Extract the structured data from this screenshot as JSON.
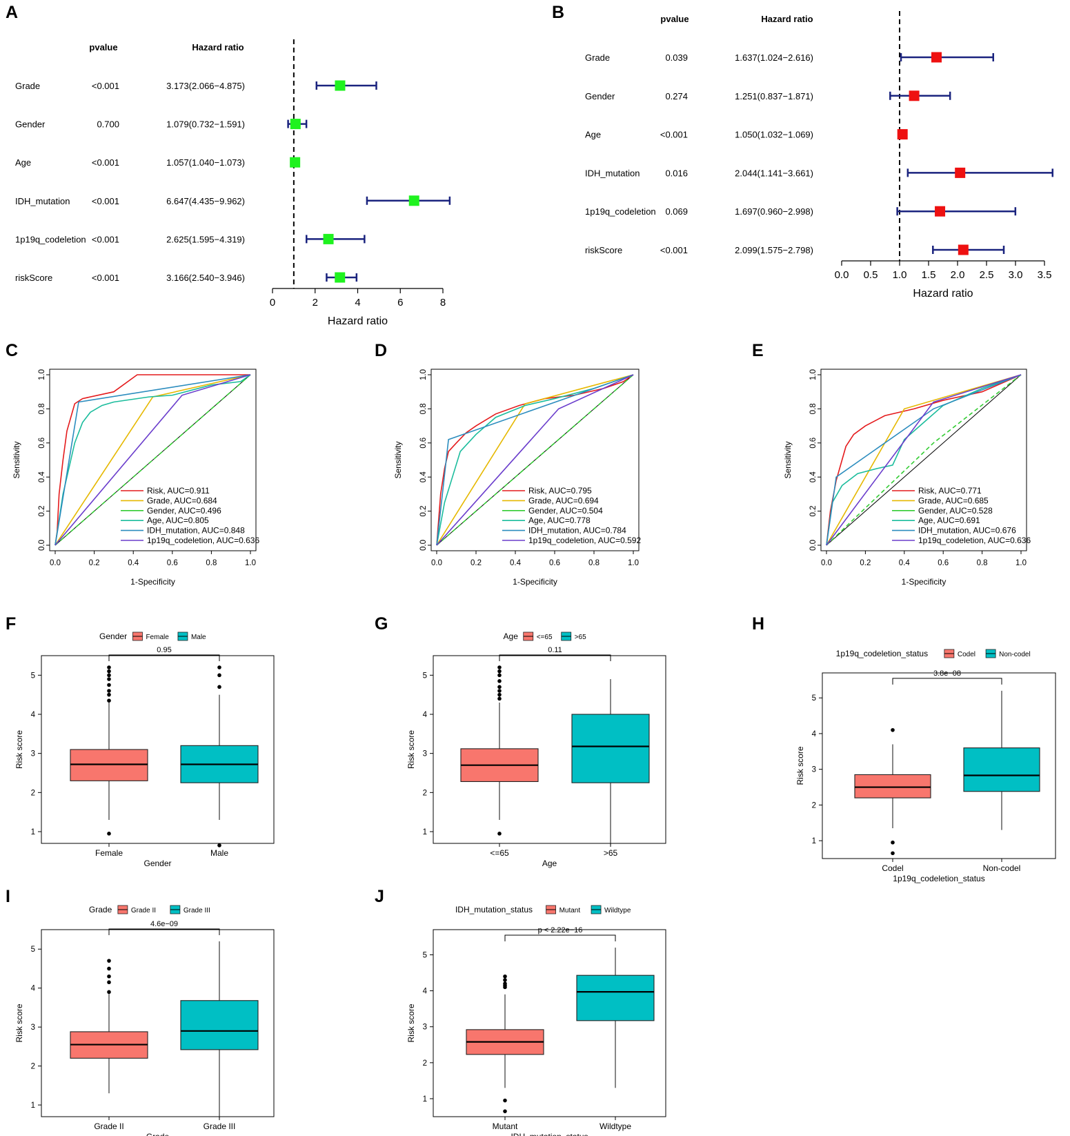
{
  "figure": {
    "panel_labels": [
      "A",
      "B",
      "C",
      "D",
      "E",
      "F",
      "G",
      "H",
      "I",
      "J"
    ]
  },
  "chart_data": [
    {
      "panel": "A",
      "type": "forest",
      "header_pvalue": "pvalue",
      "header_hr": "Hazard ratio",
      "xlabel": "Hazard ratio",
      "xlim": [
        0,
        8
      ],
      "ticks": [
        0,
        2,
        4,
        6,
        8
      ],
      "tick_labels": [
        "0",
        "2",
        "4",
        "6",
        "8"
      ],
      "reference_line": 1,
      "marker_color": "#1ff21f",
      "ci_color": "#1a237e",
      "rows": [
        {
          "label": "Grade",
          "pvalue": "<0.001",
          "hr_text": "3.173(2.066−4.875)",
          "hr": 3.173,
          "lo": 2.066,
          "hi": 4.875
        },
        {
          "label": "Gender",
          "pvalue": "0.700",
          "hr_text": "1.079(0.732−1.591)",
          "hr": 1.079,
          "lo": 0.732,
          "hi": 1.591
        },
        {
          "label": "Age",
          "pvalue": "<0.001",
          "hr_text": "1.057(1.040−1.073)",
          "hr": 1.057,
          "lo": 1.04,
          "hi": 1.073
        },
        {
          "label": "IDH_mutation",
          "pvalue": "<0.001",
          "hr_text": "6.647(4.435−9.962)",
          "hr": 6.647,
          "lo": 4.435,
          "hi": 9.962
        },
        {
          "label": "1p19q_codeletion",
          "pvalue": "<0.001",
          "hr_text": "2.625(1.595−4.319)",
          "hr": 2.625,
          "lo": 1.595,
          "hi": 4.319
        },
        {
          "label": "riskScore",
          "pvalue": "<0.001",
          "hr_text": "3.166(2.540−3.946)",
          "hr": 3.166,
          "lo": 2.54,
          "hi": 3.946
        }
      ]
    },
    {
      "panel": "B",
      "type": "forest",
      "header_pvalue": "pvalue",
      "header_hr": "Hazard ratio",
      "xlabel": "Hazard ratio",
      "xlim": [
        0,
        3.5
      ],
      "ticks": [
        0,
        0.5,
        1,
        1.5,
        2,
        2.5,
        3,
        3.5
      ],
      "tick_labels": [
        "0.0",
        "0.5",
        "1.0",
        "1.5",
        "2.0",
        "2.5",
        "3.0",
        "3.5"
      ],
      "reference_line": 1,
      "marker_color": "#ee1111",
      "ci_color": "#1a237e",
      "rows": [
        {
          "label": "Grade",
          "pvalue": "0.039",
          "hr_text": "1.637(1.024−2.616)",
          "hr": 1.637,
          "lo": 1.024,
          "hi": 2.616
        },
        {
          "label": "Gender",
          "pvalue": "0.274",
          "hr_text": "1.251(0.837−1.871)",
          "hr": 1.251,
          "lo": 0.837,
          "hi": 1.871
        },
        {
          "label": "Age",
          "pvalue": "<0.001",
          "hr_text": "1.050(1.032−1.069)",
          "hr": 1.05,
          "lo": 1.032,
          "hi": 1.069
        },
        {
          "label": "IDH_mutation",
          "pvalue": "0.016",
          "hr_text": "2.044(1.141−3.661)",
          "hr": 2.044,
          "lo": 1.141,
          "hi": 3.661
        },
        {
          "label": "1p19q_codeletion",
          "pvalue": "0.069",
          "hr_text": "1.697(0.960−2.998)",
          "hr": 1.697,
          "lo": 0.96,
          "hi": 2.998
        },
        {
          "label": "riskScore",
          "pvalue": "<0.001",
          "hr_text": "2.099(1.575−2.798)",
          "hr": 2.099,
          "lo": 1.575,
          "hi": 2.798
        }
      ]
    },
    {
      "panel": "C",
      "type": "roc",
      "xlabel": "1-Specificity",
      "ylabel": "Sensitivity",
      "xlim": [
        0,
        1
      ],
      "ylim": [
        0,
        1
      ],
      "ticks": [
        "0.0",
        "0.2",
        "0.4",
        "0.6",
        "0.8",
        "1.0"
      ],
      "series": [
        {
          "name": "Risk, AUC=0.911",
          "color": "#e41a1c",
          "points": [
            [
              0,
              0
            ],
            [
              0.01,
              0.08
            ],
            [
              0.02,
              0.3
            ],
            [
              0.04,
              0.5
            ],
            [
              0.06,
              0.67
            ],
            [
              0.08,
              0.75
            ],
            [
              0.1,
              0.83
            ],
            [
              0.14,
              0.86
            ],
            [
              0.3,
              0.9
            ],
            [
              0.42,
              1
            ],
            [
              1,
              1
            ]
          ]
        },
        {
          "name": "Grade, AUC=0.684",
          "color": "#e6b800",
          "points": [
            [
              0,
              0
            ],
            [
              0.5,
              0.87
            ],
            [
              1,
              1
            ]
          ]
        },
        {
          "name": "Gender, AUC=0.496",
          "color": "#33cc33",
          "points": [
            [
              0,
              0
            ],
            [
              0.5,
              0.5
            ],
            [
              1,
              1
            ]
          ]
        },
        {
          "name": "Age, AUC=0.805",
          "color": "#1abc9c",
          "points": [
            [
              0,
              0
            ],
            [
              0.04,
              0.3
            ],
            [
              0.06,
              0.4
            ],
            [
              0.1,
              0.6
            ],
            [
              0.14,
              0.72
            ],
            [
              0.18,
              0.78
            ],
            [
              0.24,
              0.82
            ],
            [
              0.3,
              0.84
            ],
            [
              0.48,
              0.87
            ],
            [
              0.6,
              0.88
            ],
            [
              0.8,
              0.94
            ],
            [
              0.95,
              0.96
            ],
            [
              1,
              1
            ]
          ]
        },
        {
          "name": "IDH_mutation, AUC=0.848",
          "color": "#2b8cbe",
          "points": [
            [
              0,
              0
            ],
            [
              0.12,
              0.84
            ],
            [
              1,
              1
            ]
          ]
        },
        {
          "name": "1p19q_codeletion, AUC=0.636",
          "color": "#6a3dcc",
          "points": [
            [
              0,
              0
            ],
            [
              0.65,
              0.88
            ],
            [
              1,
              1
            ]
          ]
        }
      ]
    },
    {
      "panel": "D",
      "type": "roc",
      "xlabel": "1-Specificity",
      "ylabel": "Sensitivity",
      "xlim": [
        0,
        1
      ],
      "ylim": [
        0,
        1
      ],
      "ticks": [
        "0.0",
        "0.2",
        "0.4",
        "0.6",
        "0.8",
        "1.0"
      ],
      "series": [
        {
          "name": "Risk, AUC=0.795",
          "color": "#e41a1c",
          "points": [
            [
              0,
              0
            ],
            [
              0.02,
              0.3
            ],
            [
              0.04,
              0.45
            ],
            [
              0.06,
              0.55
            ],
            [
              0.1,
              0.6
            ],
            [
              0.15,
              0.66
            ],
            [
              0.2,
              0.7
            ],
            [
              0.3,
              0.77
            ],
            [
              0.42,
              0.82
            ],
            [
              0.55,
              0.86
            ],
            [
              0.7,
              0.88
            ],
            [
              0.85,
              0.92
            ],
            [
              0.95,
              0.96
            ],
            [
              1,
              1
            ]
          ]
        },
        {
          "name": "Grade, AUC=0.694",
          "color": "#e6b800",
          "points": [
            [
              0,
              0
            ],
            [
              0.45,
              0.83
            ],
            [
              1,
              1
            ]
          ]
        },
        {
          "name": "Gender, AUC=0.504",
          "color": "#33cc33",
          "points": [
            [
              0,
              0
            ],
            [
              0.5,
              0.5
            ],
            [
              1,
              1
            ]
          ]
        },
        {
          "name": "Age, AUC=0.778",
          "color": "#1abc9c",
          "points": [
            [
              0,
              0
            ],
            [
              0.04,
              0.25
            ],
            [
              0.08,
              0.4
            ],
            [
              0.12,
              0.55
            ],
            [
              0.2,
              0.65
            ],
            [
              0.3,
              0.75
            ],
            [
              0.45,
              0.82
            ],
            [
              0.6,
              0.86
            ],
            [
              0.8,
              0.92
            ],
            [
              1,
              1
            ]
          ]
        },
        {
          "name": "IDH_mutation, AUC=0.784",
          "color": "#2b8cbe",
          "points": [
            [
              0,
              0
            ],
            [
              0.06,
              0.62
            ],
            [
              1,
              1
            ]
          ]
        },
        {
          "name": "1p19q_codeletion, AUC=0.592",
          "color": "#6a3dcc",
          "points": [
            [
              0,
              0
            ],
            [
              0.62,
              0.8
            ],
            [
              1,
              1
            ]
          ]
        }
      ]
    },
    {
      "panel": "E",
      "type": "roc",
      "xlabel": "1-Specificity",
      "ylabel": "Sensitivity",
      "xlim": [
        0,
        1
      ],
      "ylim": [
        0,
        1
      ],
      "ticks": [
        "0.0",
        "0.2",
        "0.4",
        "0.6",
        "0.8",
        "1.0"
      ],
      "series": [
        {
          "name": "Risk, AUC=0.771",
          "color": "#e41a1c",
          "points": [
            [
              0,
              0
            ],
            [
              0.02,
              0.2
            ],
            [
              0.05,
              0.38
            ],
            [
              0.08,
              0.5
            ],
            [
              0.1,
              0.58
            ],
            [
              0.14,
              0.65
            ],
            [
              0.2,
              0.7
            ],
            [
              0.3,
              0.76
            ],
            [
              0.45,
              0.8
            ],
            [
              0.6,
              0.85
            ],
            [
              0.8,
              0.9
            ],
            [
              1,
              1
            ]
          ]
        },
        {
          "name": "Grade, AUC=0.685",
          "color": "#e6b800",
          "points": [
            [
              0,
              0
            ],
            [
              0.4,
              0.8
            ],
            [
              1,
              1
            ]
          ]
        },
        {
          "name": "Gender, AUC=0.528",
          "color": "#33cc33",
          "points": [
            [
              0,
              0
            ],
            [
              0.55,
              0.6
            ],
            [
              1,
              1
            ]
          ]
        },
        {
          "name": "Age, AUC=0.691",
          "color": "#1abc9c",
          "points": [
            [
              0,
              0
            ],
            [
              0.03,
              0.25
            ],
            [
              0.08,
              0.35
            ],
            [
              0.16,
              0.42
            ],
            [
              0.26,
              0.45
            ],
            [
              0.34,
              0.47
            ],
            [
              0.4,
              0.62
            ],
            [
              0.5,
              0.72
            ],
            [
              0.6,
              0.82
            ],
            [
              0.8,
              0.92
            ],
            [
              1,
              1
            ]
          ]
        },
        {
          "name": "IDH_mutation, AUC=0.676",
          "color": "#2b8cbe",
          "points": [
            [
              0,
              0
            ],
            [
              0.05,
              0.4
            ],
            [
              0.55,
              0.8
            ],
            [
              1,
              1
            ]
          ]
        },
        {
          "name": "1p19q_codeletion, AUC=0.636",
          "color": "#6a3dcc",
          "points": [
            [
              0,
              0
            ],
            [
              0.55,
              0.84
            ],
            [
              1,
              1
            ]
          ]
        }
      ]
    },
    {
      "panel": "F",
      "type": "boxplot",
      "legend_title": "Gender",
      "xlabel": "Gender",
      "ylabel": "Risk score",
      "ylim": [
        0.7,
        5.5
      ],
      "ticks": [
        1,
        2,
        3,
        4,
        5
      ],
      "pvalue": "0.95",
      "groups": [
        {
          "name": "Female",
          "color": "#f8766d",
          "q1": 2.3,
          "median": 2.72,
          "q3": 3.1,
          "whisker_low": 1.3,
          "whisker_high": 4.3,
          "outliers": [
            0.95,
            4.35,
            4.5,
            4.6,
            4.75,
            4.9,
            5.0,
            5.1,
            5.2
          ]
        },
        {
          "name": "Male",
          "color": "#00bfc4",
          "q1": 2.25,
          "median": 2.72,
          "q3": 3.2,
          "whisker_low": 1.3,
          "whisker_high": 4.5,
          "outliers": [
            0.65,
            4.7,
            5.0,
            5.2
          ]
        }
      ]
    },
    {
      "panel": "G",
      "type": "boxplot",
      "legend_title": "Age",
      "xlabel": "Age",
      "ylabel": "Risk score",
      "ylim": [
        0.7,
        5.5
      ],
      "ticks": [
        1,
        2,
        3,
        4,
        5
      ],
      "pvalue": "0.11",
      "groups": [
        {
          "name": "<=65",
          "color": "#f8766d",
          "q1": 2.28,
          "median": 2.7,
          "q3": 3.12,
          "whisker_low": 1.3,
          "whisker_high": 4.3,
          "outliers": [
            0.95,
            4.4,
            4.5,
            4.6,
            4.7,
            4.85,
            5.0,
            5.1,
            5.2
          ]
        },
        {
          "name": ">65",
          "color": "#00bfc4",
          "q1": 2.25,
          "median": 3.18,
          "q3": 4.0,
          "whisker_low": 0.65,
          "whisker_high": 4.9,
          "outliers": []
        }
      ]
    },
    {
      "panel": "H",
      "type": "boxplot",
      "legend_title": "1p19q_codeletion_status",
      "xlabel": "1p19q_codeletion_status",
      "ylabel": "Risk score",
      "ylim": [
        0.5,
        5.7
      ],
      "ticks": [
        1,
        2,
        3,
        4,
        5
      ],
      "pvalue": "3.8e−08",
      "groups": [
        {
          "name": "Codel",
          "color": "#f8766d",
          "q1": 2.2,
          "median": 2.5,
          "q3": 2.85,
          "whisker_low": 1.35,
          "whisker_high": 3.7,
          "outliers": [
            0.65,
            0.95,
            4.1
          ]
        },
        {
          "name": "Non-codel",
          "color": "#00bfc4",
          "q1": 2.38,
          "median": 2.83,
          "q3": 3.6,
          "whisker_low": 1.3,
          "whisker_high": 5.2,
          "outliers": []
        }
      ]
    },
    {
      "panel": "I",
      "type": "boxplot",
      "legend_title": "Grade",
      "xlabel": "Grade",
      "ylabel": "Risk score",
      "ylim": [
        0.7,
        5.5
      ],
      "ticks": [
        1,
        2,
        3,
        4,
        5
      ],
      "pvalue": "4.6e−09",
      "groups": [
        {
          "name": "Grade II",
          "color": "#f8766d",
          "q1": 2.2,
          "median": 2.55,
          "q3": 2.88,
          "whisker_low": 1.3,
          "whisker_high": 3.85,
          "outliers": [
            3.9,
            4.15,
            4.3,
            4.5,
            4.7
          ]
        },
        {
          "name": "Grade III",
          "color": "#00bfc4",
          "q1": 2.42,
          "median": 2.9,
          "q3": 3.68,
          "whisker_low": 0.65,
          "whisker_high": 5.2,
          "outliers": []
        }
      ]
    },
    {
      "panel": "J",
      "type": "boxplot",
      "legend_title": "IDH_mutation_status",
      "xlabel": "IDH_mutation_status",
      "ylabel": "Risk score",
      "ylim": [
        0.5,
        5.7
      ],
      "ticks": [
        1,
        2,
        3,
        4,
        5
      ],
      "pvalue": "p < 2.22e−16",
      "groups": [
        {
          "name": "Mutant",
          "color": "#f8766d",
          "q1": 2.23,
          "median": 2.58,
          "q3": 2.92,
          "whisker_low": 1.3,
          "whisker_high": 3.9,
          "outliers": [
            0.65,
            0.95,
            4.1,
            4.15,
            4.2,
            4.3,
            4.4
          ]
        },
        {
          "name": "Wildtype",
          "color": "#00bfc4",
          "q1": 3.17,
          "median": 3.97,
          "q3": 4.43,
          "whisker_low": 1.3,
          "whisker_high": 5.2,
          "outliers": []
        }
      ]
    }
  ]
}
